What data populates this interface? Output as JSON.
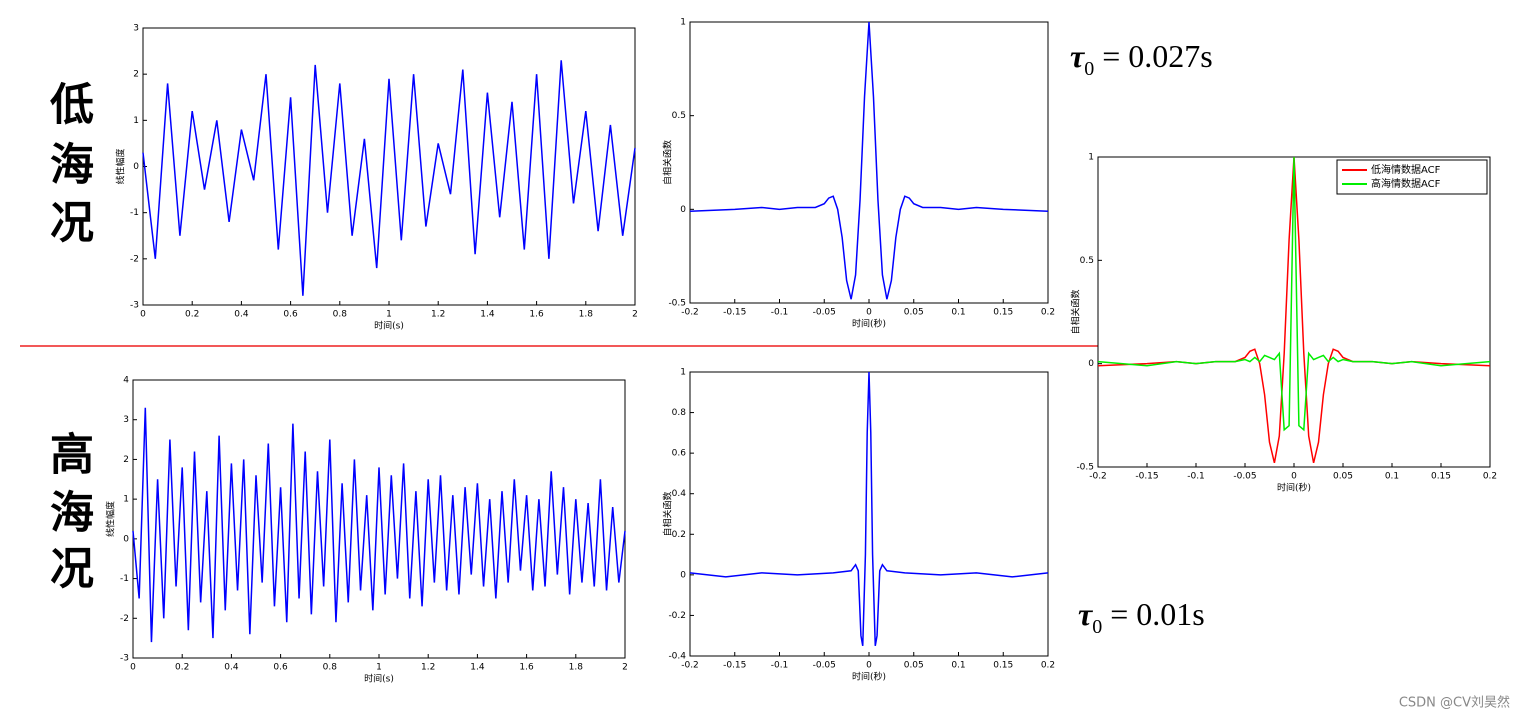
{
  "chart_data": [
    {
      "type": "line",
      "xlabel": "时间(s)",
      "ylabel": "线性幅度",
      "color": "#0000ff",
      "xlim": [
        0,
        2
      ],
      "xticks": [
        0,
        0.2,
        0.4,
        0.6,
        0.8,
        1,
        1.2,
        1.4,
        1.6,
        1.8,
        2
      ],
      "ylim": [
        -3,
        3
      ],
      "yticks": [
        -3,
        -2,
        -1,
        0,
        1,
        2,
        3
      ],
      "x": [
        0,
        0.05,
        0.1,
        0.15,
        0.2,
        0.25,
        0.3,
        0.35,
        0.4,
        0.45,
        0.5,
        0.55,
        0.6,
        0.65,
        0.7,
        0.75,
        0.8,
        0.85,
        0.9,
        0.95,
        1,
        1.05,
        1.1,
        1.15,
        1.2,
        1.25,
        1.3,
        1.35,
        1.4,
        1.45,
        1.5,
        1.55,
        1.6,
        1.65,
        1.7,
        1.75,
        1.8,
        1.85,
        1.9,
        1.95,
        2
      ],
      "values": [
        0.3,
        -2,
        1.8,
        -1.5,
        1.2,
        -0.5,
        1,
        -1.2,
        0.8,
        -0.3,
        2,
        -1.8,
        1.5,
        -2.8,
        2.2,
        -1,
        1.8,
        -1.5,
        0.6,
        -2.2,
        1.9,
        -1.6,
        2,
        -1.3,
        0.5,
        -0.6,
        2.1,
        -1.9,
        1.6,
        -1.1,
        1.4,
        -1.8,
        2,
        -2,
        2.3,
        -0.8,
        1.2,
        -1.4,
        0.9,
        -1.5,
        0.4
      ]
    },
    {
      "type": "line",
      "xlabel": "时间(秒)",
      "ylabel": "自相关函数",
      "color": "#0000ff",
      "xlim": [
        -0.2,
        0.2
      ],
      "xticks": [
        -0.2,
        -0.15,
        -0.1,
        -0.05,
        0,
        0.05,
        0.1,
        0.15,
        0.2
      ],
      "ylim": [
        -0.5,
        1
      ],
      "yticks": [
        -0.5,
        0,
        0.5,
        1
      ],
      "x": [
        -0.2,
        -0.15,
        -0.12,
        -0.1,
        -0.08,
        -0.06,
        -0.05,
        -0.045,
        -0.04,
        -0.035,
        -0.03,
        -0.025,
        -0.02,
        -0.015,
        -0.01,
        -0.005,
        0,
        0.005,
        0.01,
        0.015,
        0.02,
        0.025,
        0.03,
        0.035,
        0.04,
        0.045,
        0.05,
        0.06,
        0.08,
        0.1,
        0.12,
        0.15,
        0.2
      ],
      "values": [
        -0.01,
        0,
        0.01,
        0,
        0.01,
        0.01,
        0.03,
        0.06,
        0.07,
        0,
        -0.15,
        -0.38,
        -0.48,
        -0.35,
        0.05,
        0.6,
        1,
        0.6,
        0.05,
        -0.35,
        -0.48,
        -0.38,
        -0.15,
        0,
        0.07,
        0.06,
        0.03,
        0.01,
        0.01,
        0,
        0.01,
        0,
        -0.01
      ]
    },
    {
      "type": "line",
      "xlabel": "时间(s)",
      "ylabel": "线性幅度",
      "color": "#0000ff",
      "xlim": [
        0,
        2
      ],
      "xticks": [
        0,
        0.2,
        0.4,
        0.6,
        0.8,
        1,
        1.2,
        1.4,
        1.6,
        1.8,
        2
      ],
      "ylim": [
        -3,
        4
      ],
      "yticks": [
        -3,
        -2,
        -1,
        0,
        1,
        2,
        3,
        4
      ],
      "x": [
        0,
        0.025,
        0.05,
        0.075,
        0.1,
        0.125,
        0.15,
        0.175,
        0.2,
        0.225,
        0.25,
        0.275,
        0.3,
        0.325,
        0.35,
        0.375,
        0.4,
        0.425,
        0.45,
        0.475,
        0.5,
        0.525,
        0.55,
        0.575,
        0.6,
        0.625,
        0.65,
        0.675,
        0.7,
        0.725,
        0.75,
        0.775,
        0.8,
        0.825,
        0.85,
        0.875,
        0.9,
        0.925,
        0.95,
        0.975,
        1,
        1.025,
        1.05,
        1.075,
        1.1,
        1.125,
        1.15,
        1.175,
        1.2,
        1.225,
        1.25,
        1.275,
        1.3,
        1.325,
        1.35,
        1.375,
        1.4,
        1.425,
        1.45,
        1.475,
        1.5,
        1.525,
        1.55,
        1.575,
        1.6,
        1.625,
        1.65,
        1.675,
        1.7,
        1.725,
        1.75,
        1.775,
        1.8,
        1.825,
        1.85,
        1.875,
        1.9,
        1.925,
        1.95,
        1.975,
        2
      ],
      "values": [
        0.2,
        -1.5,
        3.3,
        -2.6,
        1.5,
        -2,
        2.5,
        -1.2,
        1.8,
        -2.3,
        2.2,
        -1.6,
        1.2,
        -2.5,
        2.6,
        -1.8,
        1.9,
        -1.3,
        2,
        -2.4,
        1.6,
        -1.1,
        2.4,
        -1.7,
        1.3,
        -2.1,
        2.9,
        -1.5,
        2.2,
        -1.9,
        1.7,
        -1.2,
        2.5,
        -2.1,
        1.4,
        -1.6,
        2,
        -1.3,
        1.1,
        -1.8,
        1.8,
        -1.4,
        1.6,
        -1,
        1.9,
        -1.5,
        1.2,
        -1.7,
        1.5,
        -1.1,
        1.6,
        -1.3,
        1.1,
        -1.4,
        1.3,
        -0.9,
        1.4,
        -1.2,
        1,
        -1.5,
        1.2,
        -1.1,
        1.5,
        -0.8,
        1.1,
        -1.3,
        1,
        -1.2,
        1.7,
        -0.9,
        1.3,
        -1.4,
        1,
        -1.1,
        0.9,
        -1.2,
        1.5,
        -1.3,
        0.8,
        -1.1,
        0.2
      ]
    },
    {
      "type": "line",
      "xlabel": "时间(秒)",
      "ylabel": "自相关函数",
      "color": "#0000ff",
      "xlim": [
        -0.2,
        0.2
      ],
      "xticks": [
        -0.2,
        -0.15,
        -0.1,
        -0.05,
        0,
        0.05,
        0.1,
        0.15,
        0.2
      ],
      "ylim": [
        -0.4,
        1
      ],
      "yticks": [
        -0.4,
        -0.2,
        0,
        0.2,
        0.4,
        0.6,
        0.8,
        1
      ],
      "x": [
        -0.2,
        -0.16,
        -0.12,
        -0.08,
        -0.04,
        -0.02,
        -0.015,
        -0.012,
        -0.009,
        -0.007,
        -0.004,
        -0.002,
        0,
        0.002,
        0.004,
        0.007,
        0.009,
        0.012,
        0.015,
        0.02,
        0.04,
        0.08,
        0.12,
        0.16,
        0.2
      ],
      "values": [
        0.01,
        -0.01,
        0.01,
        0,
        0.01,
        0.02,
        0.05,
        0.02,
        -0.3,
        -0.35,
        0.1,
        0.7,
        1,
        0.7,
        0.1,
        -0.35,
        -0.3,
        0.02,
        0.05,
        0.02,
        0.01,
        0,
        0.01,
        -0.01,
        0.01
      ]
    },
    {
      "type": "line",
      "xlabel": "时间(秒)",
      "ylabel": "自相关函数",
      "legend": "upper right",
      "xlim": [
        -0.2,
        0.2
      ],
      "xticks": [
        -0.2,
        -0.15,
        -0.1,
        -0.05,
        0,
        0.05,
        0.1,
        0.15,
        0.2
      ],
      "ylim": [
        -0.5,
        1
      ],
      "yticks": [
        -0.5,
        0,
        0.5,
        1
      ],
      "x": [
        -0.2,
        -0.15,
        -0.12,
        -0.1,
        -0.08,
        -0.06,
        -0.05,
        -0.045,
        -0.04,
        -0.035,
        -0.03,
        -0.025,
        -0.02,
        -0.015,
        -0.01,
        -0.005,
        0,
        0.005,
        0.01,
        0.015,
        0.02,
        0.025,
        0.03,
        0.035,
        0.04,
        0.045,
        0.05,
        0.06,
        0.08,
        0.1,
        0.12,
        0.15,
        0.2
      ],
      "series": [
        {
          "name": "低海情数据ACF",
          "color": "#ff0000",
          "values": [
            -0.01,
            0,
            0.01,
            0,
            0.01,
            0.01,
            0.03,
            0.06,
            0.07,
            0,
            -0.15,
            -0.38,
            -0.48,
            -0.35,
            0.05,
            0.6,
            1,
            0.6,
            0.05,
            -0.35,
            -0.48,
            -0.38,
            -0.15,
            0,
            0.07,
            0.06,
            0.03,
            0.01,
            0.01,
            0,
            0.01,
            0,
            -0.01
          ]
        },
        {
          "name": "高海情数据ACF",
          "color": "#00ee00",
          "values": [
            0.01,
            -0.01,
            0.01,
            0,
            0.01,
            0.01,
            0.02,
            0.01,
            0.03,
            0.01,
            0.04,
            0.03,
            0.02,
            0.05,
            -0.32,
            -0.3,
            1,
            -0.3,
            -0.32,
            0.05,
            0.02,
            0.03,
            0.04,
            0.01,
            0.03,
            0.01,
            0.02,
            0.01,
            0.01,
            0,
            0.01,
            -0.01,
            0.01
          ]
        }
      ]
    }
  ],
  "labels": {
    "low": [
      "低",
      "海",
      "况"
    ],
    "high": [
      "高",
      "海",
      "况"
    ],
    "tau_low": {
      "symbol": "τ",
      "subscript": "0",
      "text": "= 0.027s"
    },
    "tau_high": {
      "symbol": "τ",
      "subscript": "0",
      "text": "= 0.01s"
    },
    "watermark": "CSDN @CV刘昊然"
  }
}
